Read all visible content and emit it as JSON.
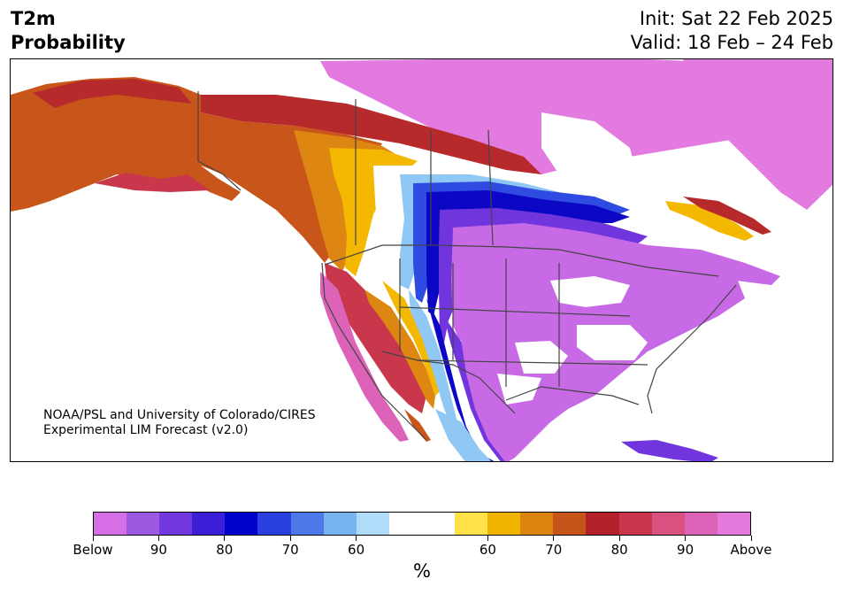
{
  "header": {
    "title_line1": "T2m",
    "title_line2": "Probability",
    "init": "Init: Sat 22 Feb 2025",
    "valid": "Valid: 18 Feb – 24 Feb"
  },
  "credit": {
    "line1": "NOAA/PSL and University of Colorado/CIRES",
    "line2": "Experimental LIM Forecast (v2.0)"
  },
  "colorbar": {
    "colors": [
      "#d66fe6",
      "#9c58e0",
      "#7038de",
      "#3a1fd6",
      "#0000cc",
      "#2a40de",
      "#4d78e8",
      "#79b4f2",
      "#b0dcfa",
      "#ffffff",
      "#ffffff",
      "#ffe14a",
      "#f0b400",
      "#dc8410",
      "#c65519",
      "#b3222a",
      "#c9374d",
      "#d95181",
      "#dd63b8",
      "#e579dc"
    ],
    "tick_labels": [
      "Below",
      "90",
      "80",
      "70",
      "60",
      "60",
      "70",
      "80",
      "90",
      "Above"
    ],
    "unit": "%"
  },
  "colors": {
    "strong_warm": "#e27ae0",
    "warm_red": "#b72a2c",
    "warm_orange": "#c8561a",
    "warm_amber": "#dd8612",
    "warm_yellow": "#f4b800",
    "cold_light": "#8fc8f4",
    "cold_blue": "#2f4be2",
    "cold_dark": "#0b07c4",
    "cold_violet": "#7035dc",
    "strong_cold": "#c86ae6"
  }
}
